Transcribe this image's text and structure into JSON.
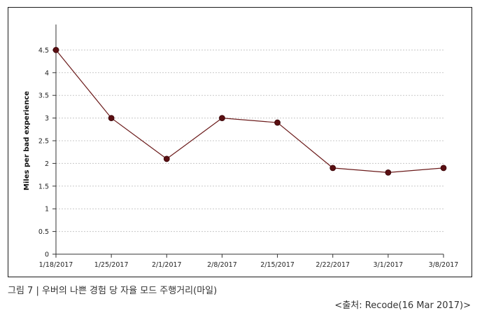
{
  "chart_data": {
    "type": "line",
    "categories": [
      "1/18/2017",
      "1/25/2017",
      "2/1/2017",
      "2/8/2017",
      "2/15/2017",
      "2/22/2017",
      "3/1/2017",
      "3/8/2017"
    ],
    "series": [
      {
        "values": [
          4.5,
          3.0,
          2.1,
          3.0,
          2.9,
          1.9,
          1.8,
          1.9
        ]
      }
    ],
    "xlabel": "",
    "ylabel": "Miles per bad experience",
    "ylim": [
      0,
      5
    ],
    "yticks": [
      "0",
      "0.5",
      "1",
      "1.5",
      "2",
      "2.5",
      "3",
      "3.5",
      "4",
      "4.5"
    ],
    "grid": true,
    "colors": {
      "line": "#6b1a1a",
      "marker": "#5a0f12"
    }
  },
  "caption": "그림 7 | 우버의 나쁜 경험 당 자율 모드 주행거리(마일)",
  "source": "<출처: Recode(16 Mar 2017)>"
}
